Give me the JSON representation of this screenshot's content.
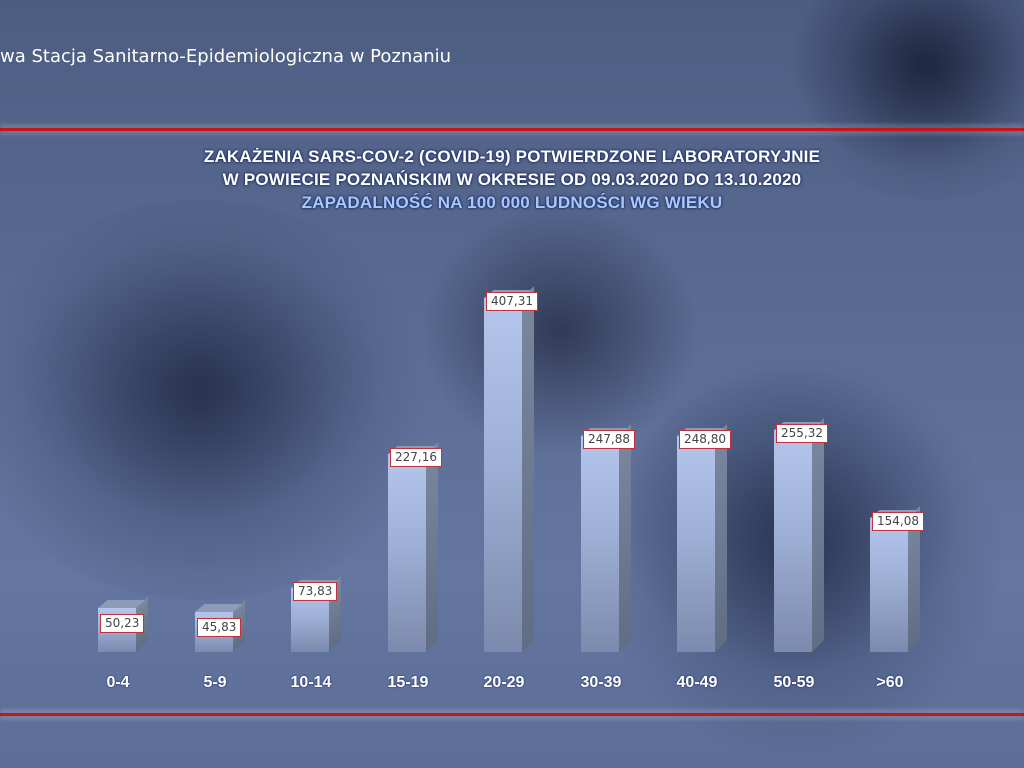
{
  "header": {
    "institution_text": "wa Stacja Sanitarno-Epidemiologiczna w Poznaniu"
  },
  "colors": {
    "accent_line": "#c8141c",
    "title": "#ffffff",
    "subtitle": "#a9c8ff",
    "label_border": "#c0323c",
    "bar_front": "#9fb0d6",
    "bar_side": "#6a7690"
  },
  "title": {
    "line1": "ZAKAŻENIA SARS-COV-2 (COVID-19) POTWIERDZONE LABORATORYJNIE",
    "line2": "W POWIECIE POZNAŃSKIM W OKRESIE OD 09.03.2020 DO 13.10.2020",
    "subtitle": "ZAPADALNOŚĆ NA 100 000 LUDNOŚCI WG WIEKU"
  },
  "chart_data": {
    "type": "bar",
    "title": "ZAKAŻENIA SARS-COV-2 (COVID-19) POTWIERDZONE LABORATORYJNIE W POWIECIE POZNAŃSKIM W OKRESIE OD 09.03.2020 DO 13.10.2020",
    "subtitle": "ZAPADALNOŚĆ NA 100 000 LUDNOŚCI WG WIEKU",
    "xlabel": "",
    "ylabel": "",
    "categories": [
      "0-4",
      "5-9",
      "10-14",
      "15-19",
      "20-29",
      "30-39",
      "40-49",
      "50-59",
      ">60"
    ],
    "values": [
      50.23,
      45.83,
      73.83,
      227.16,
      407.31,
      247.88,
      248.8,
      255.32,
      154.08
    ],
    "value_labels": [
      "50,23",
      "45,83",
      "73,83",
      "227,16",
      "407,31",
      "247,88",
      "248,80",
      "255,32",
      "154,08"
    ],
    "grid": false,
    "legend": "none",
    "style": "3d-columns"
  }
}
